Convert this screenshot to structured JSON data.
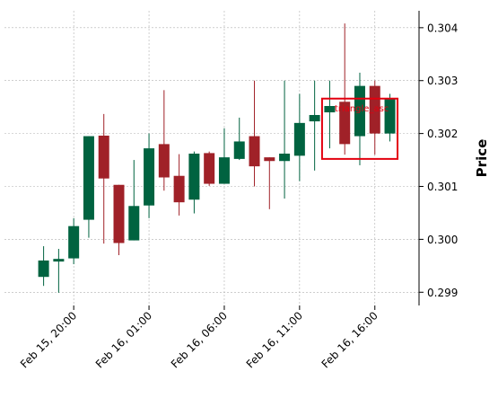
{
  "chart_data": {
    "type": "candlestick",
    "title": "",
    "xlabel": "",
    "ylabel": "Price",
    "ylim": [
      0.29875,
      0.30432
    ],
    "grid": true,
    "x_ticks": [
      {
        "index": 2,
        "label": "Feb 15, 20:00"
      },
      {
        "index": 7,
        "label": "Feb 16, 01:00"
      },
      {
        "index": 12,
        "label": "Feb 16, 06:00"
      },
      {
        "index": 17,
        "label": "Feb 16, 11:00"
      },
      {
        "index": 22,
        "label": "Feb 16, 16:00"
      }
    ],
    "y_ticks": [
      0.299,
      0.3,
      0.301,
      0.302,
      0.303,
      0.304
    ],
    "colors": {
      "up": "#006340",
      "down": "#A02128",
      "box": "#E3000F",
      "grid": "#b0b0b0"
    },
    "candles": [
      {
        "open": 0.29929,
        "high": 0.29987,
        "low": 0.29912,
        "close": 0.2996
      },
      {
        "open": 0.29958,
        "high": 0.29982,
        "low": 0.29899,
        "close": 0.29963
      },
      {
        "open": 0.29964,
        "high": 0.3004,
        "low": 0.29953,
        "close": 0.30025
      },
      {
        "open": 0.30037,
        "high": 0.30195,
        "low": 0.30003,
        "close": 0.30195
      },
      {
        "open": 0.30196,
        "high": 0.30237,
        "low": 0.29992,
        "close": 0.30115
      },
      {
        "open": 0.30103,
        "high": 0.30103,
        "low": 0.2997,
        "close": 0.29993
      },
      {
        "open": 0.29998,
        "high": 0.3015,
        "low": 0.29998,
        "close": 0.30063
      },
      {
        "open": 0.30064,
        "high": 0.302,
        "low": 0.3004,
        "close": 0.30172
      },
      {
        "open": 0.3018,
        "high": 0.30282,
        "low": 0.30092,
        "close": 0.30117
      },
      {
        "open": 0.3012,
        "high": 0.30161,
        "low": 0.30045,
        "close": 0.3007
      },
      {
        "open": 0.30075,
        "high": 0.30166,
        "low": 0.30049,
        "close": 0.30162
      },
      {
        "open": 0.30163,
        "high": 0.30166,
        "low": 0.30101,
        "close": 0.30105
      },
      {
        "open": 0.30105,
        "high": 0.3021,
        "low": 0.30105,
        "close": 0.30155
      },
      {
        "open": 0.30152,
        "high": 0.3023,
        "low": 0.3015,
        "close": 0.30185
      },
      {
        "open": 0.30195,
        "high": 0.303,
        "low": 0.301,
        "close": 0.30138
      },
      {
        "open": 0.30155,
        "high": 0.30155,
        "low": 0.30057,
        "close": 0.30148
      },
      {
        "open": 0.30148,
        "high": 0.303,
        "low": 0.30077,
        "close": 0.30162
      },
      {
        "open": 0.30158,
        "high": 0.30275,
        "low": 0.3011,
        "close": 0.3022
      },
      {
        "open": 0.30223,
        "high": 0.303,
        "low": 0.3013,
        "close": 0.30235
      },
      {
        "open": 0.3024,
        "high": 0.303,
        "low": 0.30172,
        "close": 0.30252
      },
      {
        "open": 0.3026,
        "high": 0.30408,
        "low": 0.3016,
        "close": 0.3018
      },
      {
        "open": 0.30195,
        "high": 0.30315,
        "low": 0.3014,
        "close": 0.3029
      },
      {
        "open": 0.3029,
        "high": 0.303,
        "low": 0.3016,
        "close": 0.302
      },
      {
        "open": 0.302,
        "high": 0.30275,
        "low": 0.30185,
        "close": 0.30265
      }
    ],
    "annotations": [
      {
        "type": "box",
        "label": "triangle_asc",
        "start_index": 19,
        "end_index": 23,
        "y_low": 0.30152,
        "y_high": 0.30266
      }
    ]
  }
}
